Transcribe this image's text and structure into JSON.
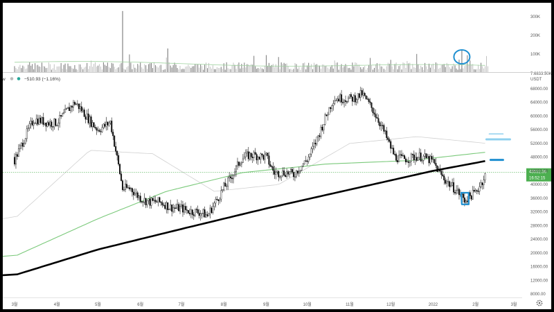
{
  "header": {
    "left_fragment": "w",
    "change": "−510.93 (−1.16%)"
  },
  "volume_axis": {
    "ticks": [
      {
        "label": "300K",
        "value": 300000
      },
      {
        "label": "200K",
        "value": 200000
      },
      {
        "label": "100K",
        "value": 100000
      },
      {
        "label": "7.6833.50K",
        "value": 0
      }
    ]
  },
  "price_axis": {
    "currency": "USDT",
    "ticks": [
      "68000.00",
      "64000.00",
      "60000.00",
      "56000.00",
      "52000.00",
      "48000.00",
      "44000.00",
      "40000.00",
      "36000.00",
      "32000.00",
      "28000.00",
      "24000.00",
      "20000.00",
      "16000.00",
      "12000.00",
      "8000.00"
    ],
    "current_price_label": "43532.36",
    "countdown_label": "16:52:15"
  },
  "time_axis": {
    "labels": [
      "3월",
      "4월",
      "5월",
      "6월",
      "7월",
      "8월",
      "9월",
      "10월",
      "11월",
      "12월",
      "2022",
      "2월",
      "3월"
    ]
  },
  "chart_data": {
    "type": "line",
    "chart_style": "candlestick",
    "xlabel": "",
    "ylabel": "",
    "ylim": [
      8000,
      70000
    ],
    "grid": false,
    "price_series": {
      "name": "",
      "x": [
        "2021-03-01",
        "2021-03-15",
        "2021-04-01",
        "2021-04-14",
        "2021-05-01",
        "2021-05-10",
        "2021-05-19",
        "2021-05-25",
        "2021-06-08",
        "2021-06-22",
        "2021-07-01",
        "2021-07-20",
        "2021-08-01",
        "2021-08-14",
        "2021-09-01",
        "2021-09-07",
        "2021-09-21",
        "2021-10-01",
        "2021-10-20",
        "2021-11-10",
        "2021-11-26",
        "2021-12-04",
        "2021-12-15",
        "2022-01-01",
        "2022-01-10",
        "2022-01-24",
        "2022-02-01",
        "2022-02-08"
      ],
      "values": [
        48000,
        58000,
        59000,
        63000,
        57000,
        58000,
        38000,
        39000,
        35000,
        33000,
        34000,
        30000,
        40000,
        47000,
        49000,
        44000,
        42000,
        48000,
        64000,
        67000,
        55000,
        49000,
        47500,
        47000,
        42000,
        34500,
        38000,
        43532
      ]
    },
    "series": [
      {
        "name": "",
        "color": "#000000",
        "x": [
          "2021-03-01",
          "2021-05-01",
          "2021-07-01",
          "2021-09-01",
          "2021-11-01",
          "2022-01-01",
          "2022-02-10"
        ],
        "values": [
          13500,
          21000,
          27000,
          33000,
          38500,
          44000,
          47000
        ]
      },
      {
        "name": "",
        "color": "#7ac97a",
        "x": [
          "2021-03-01",
          "2021-05-01",
          "2021-06-20",
          "2021-08-15",
          "2021-10-15",
          "2021-12-15",
          "2022-02-10"
        ],
        "values": [
          19000,
          30000,
          38000,
          43500,
          46000,
          47000,
          49500
        ]
      },
      {
        "name": "",
        "color": "#d0d0d0",
        "x": [
          "2021-03-01",
          "2021-04-25",
          "2021-06-10",
          "2021-07-25",
          "2021-09-10",
          "2021-11-01",
          "2021-12-20",
          "2022-02-10"
        ],
        "values": [
          30000,
          50000,
          49000,
          38000,
          40000,
          52000,
          54000,
          52000
        ]
      }
    ],
    "volume": {
      "ylim": [
        0,
        330000
      ],
      "x_range": [
        "2021-03-01",
        "2022-02-10"
      ],
      "typical": 45000,
      "spikes": [
        {
          "date": "2021-05-19",
          "value": 330000
        },
        {
          "date": "2021-06-21",
          "value": 130000
        },
        {
          "date": "2022-01-22",
          "value": 120000
        }
      ]
    },
    "annotations": [
      {
        "kind": "circle",
        "color": "#1e8fd0",
        "target": "volume spike 2022-01"
      },
      {
        "kind": "rectangle",
        "color": "#1e8fd0",
        "target": "price low 2022-01"
      },
      {
        "kind": "dash",
        "color": "#8fd0ee",
        "target": "price level"
      },
      {
        "kind": "dash",
        "color": "#1e8fd0",
        "target": "price level"
      }
    ]
  }
}
